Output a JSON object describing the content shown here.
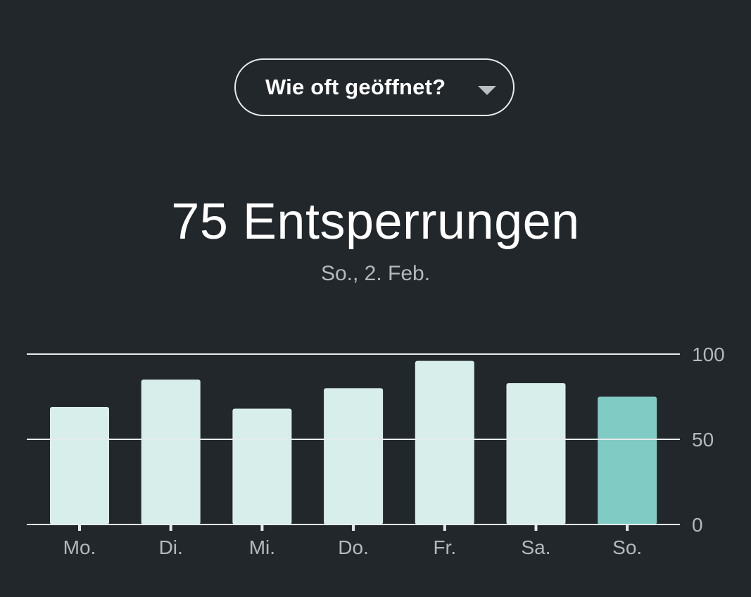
{
  "metric_selector": {
    "label": "Wie oft geöffnet?",
    "icon": "chevron-down-icon"
  },
  "summary": {
    "headline": "75 Entsperrungen",
    "date": "So., 2. Feb."
  },
  "colors": {
    "background": "#22272c",
    "bar": "#d8eeeb",
    "bar_selected": "#80cbc4",
    "gridline": "#e6ebec",
    "axis_text": "#b4b9bc"
  },
  "chart_data": {
    "type": "bar",
    "categories": [
      "Mo.",
      "Di.",
      "Mi.",
      "Do.",
      "Fr.",
      "Sa.",
      "So."
    ],
    "values": [
      69,
      85,
      68,
      80,
      96,
      83,
      75
    ],
    "selected_index": 6,
    "ylim": [
      0,
      100
    ],
    "yticks": [
      "0",
      "50",
      "100"
    ],
    "grid": true,
    "title": "",
    "xlabel": "",
    "ylabel": ""
  }
}
